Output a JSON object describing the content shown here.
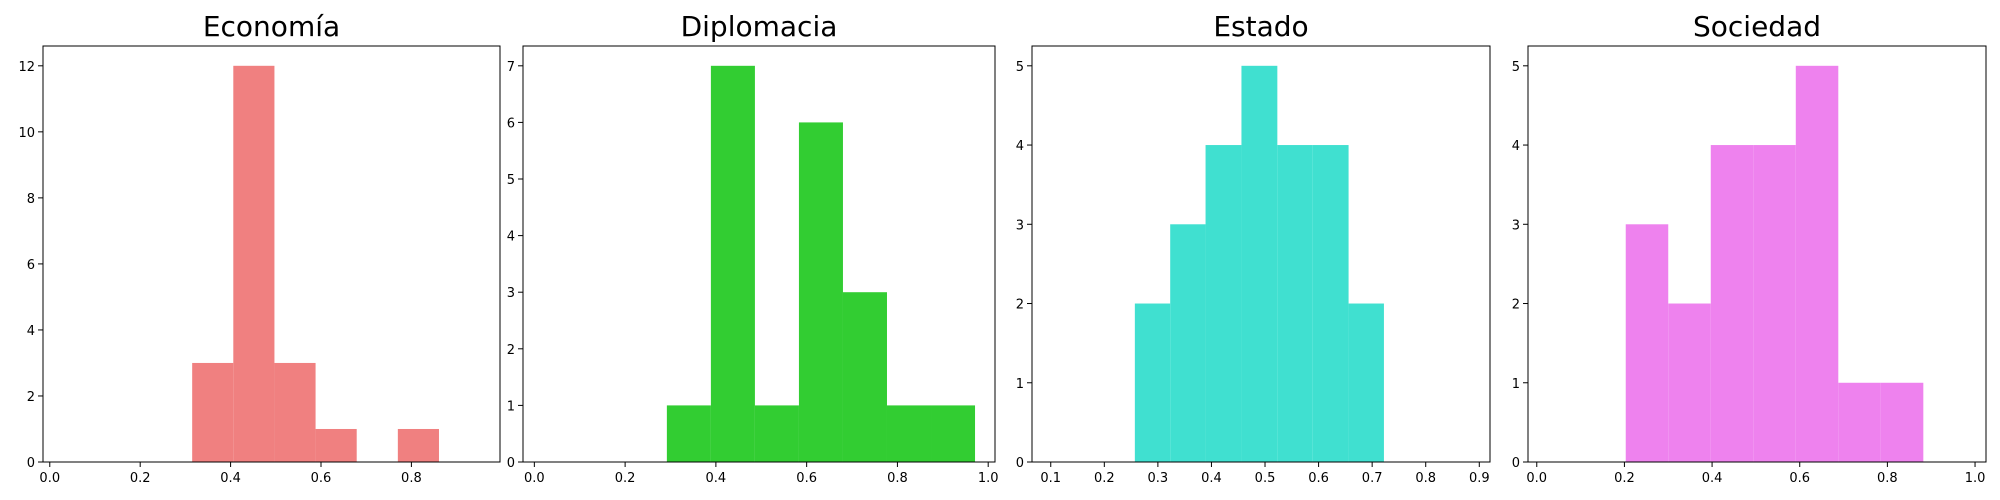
{
  "chart_data": [
    {
      "type": "bar",
      "title": "Economía",
      "color": "#f08080",
      "xlim": [
        -0.015,
        0.996
      ],
      "ylim": [
        0,
        12.6
      ],
      "xticks": [
        "0.0",
        "0.2",
        "0.4",
        "0.6",
        "0.8"
      ],
      "yticks": [
        "0",
        "2",
        "4",
        "6",
        "8",
        "10",
        "12"
      ],
      "bins": [
        {
          "x0": 0.315,
          "x1": 0.406,
          "value": 3
        },
        {
          "x0": 0.406,
          "x1": 0.497,
          "value": 12
        },
        {
          "x0": 0.497,
          "x1": 0.588,
          "value": 3
        },
        {
          "x0": 0.588,
          "x1": 0.679,
          "value": 1
        },
        {
          "x0": 0.679,
          "x1": 0.77,
          "value": 0
        },
        {
          "x0": 0.77,
          "x1": 0.861,
          "value": 1
        }
      ]
    },
    {
      "type": "bar",
      "title": "Diplomacia",
      "color": "#32cd32",
      "xlim": [
        -0.025,
        1.015
      ],
      "ylim": [
        0,
        7.35
      ],
      "xticks": [
        "0.0",
        "0.2",
        "0.4",
        "0.6",
        "0.8",
        "1.0"
      ],
      "yticks": [
        "0",
        "1",
        "2",
        "3",
        "4",
        "5",
        "6",
        "7"
      ],
      "bins": [
        {
          "x0": 0.292,
          "x1": 0.389,
          "value": 1
        },
        {
          "x0": 0.389,
          "x1": 0.486,
          "value": 7
        },
        {
          "x0": 0.486,
          "x1": 0.583,
          "value": 1
        },
        {
          "x0": 0.583,
          "x1": 0.68,
          "value": 6
        },
        {
          "x0": 0.68,
          "x1": 0.777,
          "value": 3
        },
        {
          "x0": 0.777,
          "x1": 0.874,
          "value": 1
        },
        {
          "x0": 0.874,
          "x1": 0.971,
          "value": 1
        }
      ]
    },
    {
      "type": "bar",
      "title": "Estado",
      "color": "#40e0d0",
      "xlim": [
        0.065,
        0.92
      ],
      "ylim": [
        0,
        5.25
      ],
      "xticks": [
        "0.1",
        "0.2",
        "0.3",
        "0.4",
        "0.5",
        "0.6",
        "0.7",
        "0.8",
        "0.9"
      ],
      "yticks": [
        "0",
        "1",
        "2",
        "3",
        "4",
        "5"
      ],
      "bins": [
        {
          "x0": 0.257,
          "x1": 0.323,
          "value": 2
        },
        {
          "x0": 0.323,
          "x1": 0.389,
          "value": 3
        },
        {
          "x0": 0.389,
          "x1": 0.456,
          "value": 4
        },
        {
          "x0": 0.456,
          "x1": 0.523,
          "value": 5
        },
        {
          "x0": 0.523,
          "x1": 0.589,
          "value": 4
        },
        {
          "x0": 0.589,
          "x1": 0.656,
          "value": 4
        },
        {
          "x0": 0.656,
          "x1": 0.722,
          "value": 2
        }
      ]
    },
    {
      "type": "bar",
      "title": "Sociedad",
      "color": "#ee82ee",
      "xlim": [
        -0.02,
        1.025
      ],
      "ylim": [
        0,
        5.25
      ],
      "xticks": [
        "0.0",
        "0.2",
        "0.4",
        "0.6",
        "0.8",
        "1.0"
      ],
      "yticks": [
        "0",
        "1",
        "2",
        "3",
        "4",
        "5"
      ],
      "bins": [
        {
          "x0": 0.203,
          "x1": 0.3,
          "value": 3
        },
        {
          "x0": 0.3,
          "x1": 0.397,
          "value": 2
        },
        {
          "x0": 0.397,
          "x1": 0.494,
          "value": 4
        },
        {
          "x0": 0.494,
          "x1": 0.591,
          "value": 4
        },
        {
          "x0": 0.591,
          "x1": 0.688,
          "value": 5
        },
        {
          "x0": 0.688,
          "x1": 0.785,
          "value": 1
        },
        {
          "x0": 0.785,
          "x1": 0.882,
          "value": 1
        }
      ]
    }
  ]
}
